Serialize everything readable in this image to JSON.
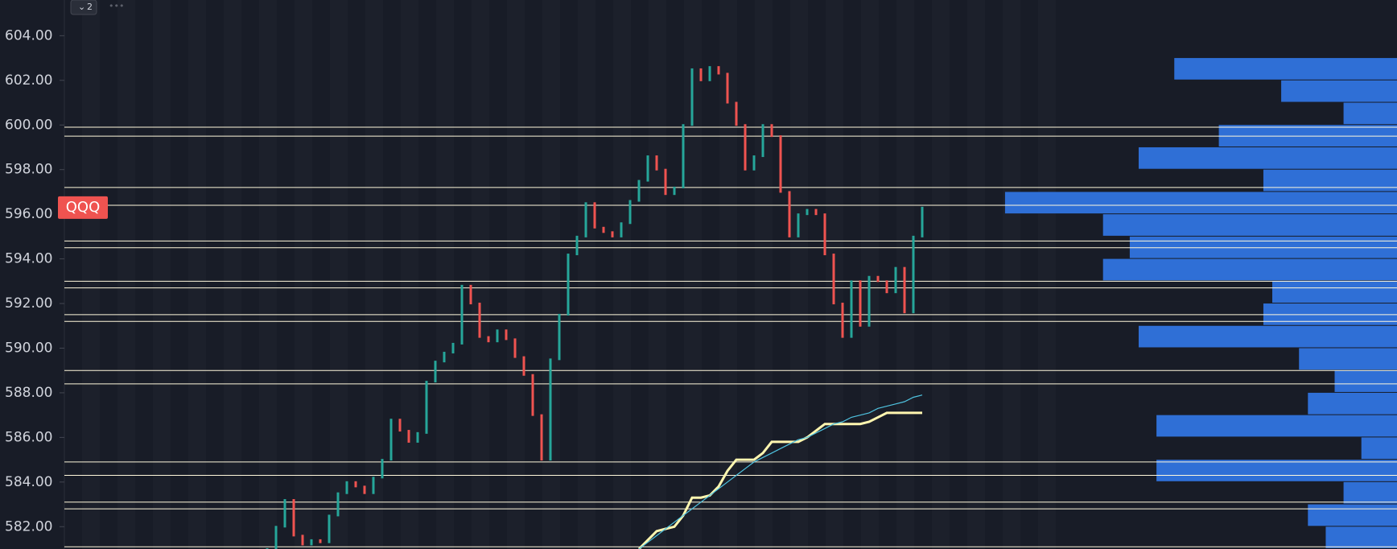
{
  "toolbar": {
    "badge": "2"
  },
  "chart_data": {
    "type": "price-chart",
    "symbol": "QQQ",
    "symbol_price": 596.3,
    "ylim": [
      581,
      605.6
    ],
    "yticks": [
      {
        "value": 582,
        "label": "582.00"
      },
      {
        "value": 584,
        "label": "584.00"
      },
      {
        "value": 586,
        "label": "586.00"
      },
      {
        "value": 588,
        "label": "588.00"
      },
      {
        "value": 590,
        "label": "590.00"
      },
      {
        "value": 592,
        "label": "592.00"
      },
      {
        "value": 594,
        "label": "594.00"
      },
      {
        "value": 596,
        "label": "596.00"
      },
      {
        "value": 598,
        "label": "598.00"
      },
      {
        "value": 600,
        "label": "600.00"
      },
      {
        "value": 602,
        "label": "602.00"
      },
      {
        "value": 604,
        "label": "604.00"
      }
    ],
    "up_color": "#26a69a",
    "down_color": "#ef5350",
    "values": [
      581.0,
      582.0,
      583.2,
      581.6,
      581.2,
      581.4,
      581.3,
      582.5,
      583.5,
      584.0,
      583.8,
      583.5,
      584.2,
      585.0,
      586.8,
      586.3,
      585.8,
      586.2,
      588.5,
      589.4,
      589.8,
      590.2,
      592.8,
      592.0,
      590.5,
      590.3,
      590.8,
      590.4,
      589.6,
      588.8,
      587.0,
      585.0,
      589.5,
      591.5,
      594.2,
      595.0,
      596.5,
      595.4,
      595.2,
      595.0,
      595.6,
      596.6,
      597.5,
      598.6,
      598.0,
      596.9,
      597.2,
      600.0,
      602.5,
      602.0,
      602.6,
      602.3,
      601.0,
      600.0,
      598.0,
      598.6,
      600.0,
      599.5,
      597.0,
      595.0,
      596.0,
      596.2,
      596.0,
      594.2,
      592.0,
      590.5,
      593.0,
      591.0,
      593.2,
      593.0,
      592.5,
      593.6,
      591.6,
      595.0,
      596.3
    ],
    "series": [
      {
        "color": "#fff6b0",
        "values": [
          null,
          null,
          null,
          null,
          null,
          null,
          null,
          null,
          null,
          null,
          null,
          null,
          null,
          null,
          null,
          null,
          null,
          null,
          null,
          null,
          null,
          null,
          null,
          null,
          null,
          null,
          null,
          null,
          null,
          null,
          null,
          null,
          null,
          null,
          null,
          null,
          null,
          null,
          null,
          null,
          null,
          null,
          581.0,
          581.4,
          581.8,
          581.9,
          582.0,
          582.5,
          583.3,
          583.3,
          583.4,
          583.8,
          584.5,
          585.0,
          585.0,
          585.0,
          585.3,
          585.8,
          585.8,
          585.8,
          585.8,
          586.0,
          586.3,
          586.6,
          586.6,
          586.6,
          586.6,
          586.6,
          586.7,
          586.9,
          587.1,
          587.1,
          587.1,
          587.1,
          587.1
        ]
      },
      {
        "color": "#4fc3e0",
        "values": [
          null,
          null,
          null,
          null,
          null,
          null,
          null,
          null,
          null,
          null,
          null,
          null,
          null,
          null,
          null,
          null,
          null,
          null,
          null,
          null,
          null,
          null,
          null,
          null,
          null,
          null,
          null,
          null,
          null,
          null,
          null,
          null,
          null,
          null,
          null,
          null,
          null,
          null,
          null,
          null,
          null,
          null,
          581.0,
          581.3,
          581.6,
          581.9,
          582.2,
          582.5,
          582.8,
          583.1,
          583.4,
          583.7,
          584.0,
          584.3,
          584.6,
          584.9,
          585.1,
          585.3,
          585.5,
          585.7,
          585.9,
          586.0,
          586.2,
          586.4,
          586.6,
          586.7,
          586.9,
          587.0,
          587.1,
          587.3,
          587.4,
          587.5,
          587.6,
          587.8,
          587.9
        ]
      }
    ],
    "levels": [
      599.9,
      599.5,
      597.2,
      596.4,
      594.8,
      594.5,
      593.0,
      592.7,
      591.5,
      591.2,
      589.0,
      588.4,
      584.9,
      584.3,
      583.1,
      582.8,
      581.1
    ],
    "level_color": "#fff8dc",
    "volume_profile": {
      "color": "#2f6fd6",
      "prices": [
        602.5,
        601.5,
        600.5,
        599.5,
        598.5,
        597.5,
        596.5,
        595.5,
        594.5,
        593.5,
        592.5,
        591.5,
        590.5,
        589.5,
        588.5,
        587.5,
        586.5,
        585.5,
        584.5,
        583.5,
        582.5,
        581.5
      ],
      "values": [
        250,
        130,
        60,
        200,
        290,
        150,
        440,
        330,
        300,
        330,
        140,
        150,
        290,
        110,
        70,
        100,
        270,
        40,
        270,
        60,
        100,
        80
      ]
    }
  }
}
